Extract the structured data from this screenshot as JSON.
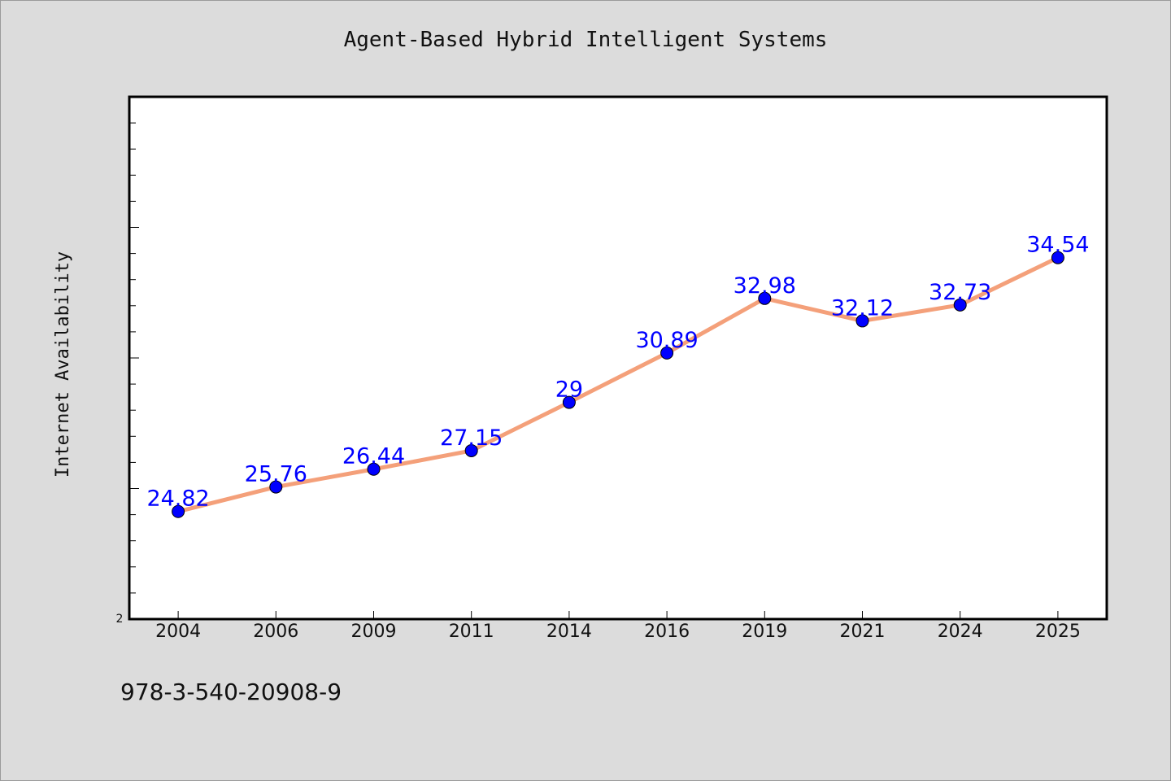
{
  "chart_data": {
    "type": "line",
    "title": "Agent-Based Hybrid Intelligent Systems",
    "xlabel": "",
    "ylabel": "Internet Availability",
    "categories": [
      "2004",
      "2006",
      "2009",
      "2011",
      "2014",
      "2016",
      "2019",
      "2021",
      "2024",
      "2025"
    ],
    "series": [
      {
        "values": [
          24.82,
          25.76,
          26.44,
          27.15,
          29,
          30.89,
          32.98,
          32.12,
          32.73,
          34.54
        ],
        "labels": [
          "24.82",
          "25.76",
          "26.44",
          "27.15",
          "29",
          "30.89",
          "32.98",
          "32.12",
          "32.73",
          "34.54"
        ],
        "line_color": "#f4a07a",
        "marker_color": "#0000ff"
      }
    ],
    "y_min_label": "2",
    "ylim": [
      20.7,
      40.7
    ],
    "grid": false,
    "legend": "none"
  },
  "footer": {
    "code": "978-3-540-20908-9"
  }
}
